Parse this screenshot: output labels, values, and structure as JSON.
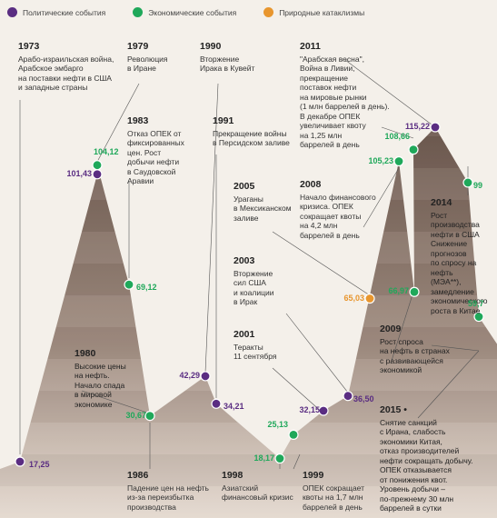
{
  "legend": [
    {
      "label": "Политические события",
      "color": "#5a2d82"
    },
    {
      "label": "Экономические события",
      "color": "#1fa85a"
    },
    {
      "label": "Природные катаклизмы",
      "color": "#e8962e"
    }
  ],
  "chart_data": {
    "type": "line",
    "series": [
      {
        "values": [
          {
            "year": "1973",
            "value": 17.25,
            "kind": "political",
            "label": "17,25"
          },
          {
            "year": "1979",
            "value": 101.43,
            "kind": "political",
            "label": "101,43"
          },
          {
            "year": "1980",
            "value": 104.12,
            "kind": "economic",
            "label": "104,12"
          },
          {
            "year": "1983",
            "value": 69.12,
            "kind": "economic",
            "label": "69,12"
          },
          {
            "year": "1986",
            "value": 30.67,
            "kind": "economic",
            "label": "30,67"
          },
          {
            "year": "1990",
            "value": 42.29,
            "kind": "political",
            "label": "42,29"
          },
          {
            "year": "1991",
            "value": 34.21,
            "kind": "political",
            "label": "34,21"
          },
          {
            "year": "1998",
            "value": 18.17,
            "kind": "economic",
            "label": "18,17"
          },
          {
            "year": "1999",
            "value": 25.13,
            "kind": "economic",
            "label": "25,13"
          },
          {
            "year": "2001",
            "value": 32.15,
            "kind": "political",
            "label": "32,15"
          },
          {
            "year": "2003",
            "value": 36.5,
            "kind": "political",
            "label": "36,50"
          },
          {
            "year": "2005",
            "value": 65.03,
            "kind": "natural",
            "label": "65,03"
          },
          {
            "year": "2008",
            "value": 105.23,
            "kind": "economic",
            "label": "105,23"
          },
          {
            "year": "2009",
            "value": 66.97,
            "kind": "economic",
            "label": "66,97"
          },
          {
            "year": "2011a",
            "value": 108.66,
            "kind": "economic",
            "label": "108,66"
          },
          {
            "year": "2011",
            "value": 115.22,
            "kind": "political",
            "label": "115,22"
          },
          {
            "year": "2014",
            "value": 99,
            "kind": "economic",
            "label": "99"
          },
          {
            "year": "2015",
            "value": 59.7,
            "kind": "economic",
            "label": "59,7"
          }
        ]
      }
    ]
  },
  "annotations": [
    {
      "year": "1973",
      "text": "Арабо-израильская война,\nАрабское эмбарго\nна поставки нефти в США\nи западные страны"
    },
    {
      "year": "1979",
      "text": "Революция\nв Иране"
    },
    {
      "year": "1983",
      "text": "Отказ ОПЕК от\nфиксированных\nцен. Рост\nдобычи нефти\nв Саудовской\nАравии"
    },
    {
      "year": "1980",
      "text": "Высокие цены\nна нефть.\nНачало спада\nв мировой\nэкономике"
    },
    {
      "year": "1986",
      "text": "Падение цен на нефть\nиз-за переизбытка\nпроизводства"
    },
    {
      "year": "1990",
      "text": "Вторжение\nИрака в Кувейт"
    },
    {
      "year": "1991",
      "text": "Прекращение войны\nв Персидском заливе"
    },
    {
      "year": "1998",
      "text": "Азиатский\nфинансовый кризис"
    },
    {
      "year": "1999",
      "text": "ОПЕК сокращает\nквоты на 1,7 млн\nбаррелей в день"
    },
    {
      "year": "2001",
      "text": "Теракты\n11 сентября"
    },
    {
      "year": "2003",
      "text": "Вторжение\nсил США\nи коалиции\nв Ирак"
    },
    {
      "year": "2005",
      "text": "Ураганы\nв Мексиканском\nзаливе"
    },
    {
      "year": "2008",
      "text": "Начало финансового\nкризиса. ОПЕК\nсокращает квоты\nна 4,2 млн\nбаррелей в день"
    },
    {
      "year": "2011",
      "text": "\"Арабская весна\",\nВойна в Ливии,\nпрекращение\nпоставок нефти\nна мировые рынки\n(1 млн баррелей в день).\nВ декабре ОПЕК\nувеличивает квоту\nна 1,25 млн\nбаррелей в день"
    },
    {
      "year": "2009",
      "text": "Рост спроса\nна нефть в странах\nс развивающейся\nэкономикой"
    },
    {
      "year": "2014",
      "text": "Рост производства\nнефти в США\nСнижение прогнозов\nпо спросу на нефть\n(МЭА**), замедление\nэкономического\nроста в Китае"
    },
    {
      "year": "2015 •",
      "text": "Снятие санкций\nс Ирана,  слабость\nэкономики Китая,\nотказ производителей\nнефти сокращать добычу.\nОПЕК отказывается\nот понижения квот.\nУровень добычи –\nпо-прежнему 30 млн\nбаррелей в сутки"
    }
  ]
}
